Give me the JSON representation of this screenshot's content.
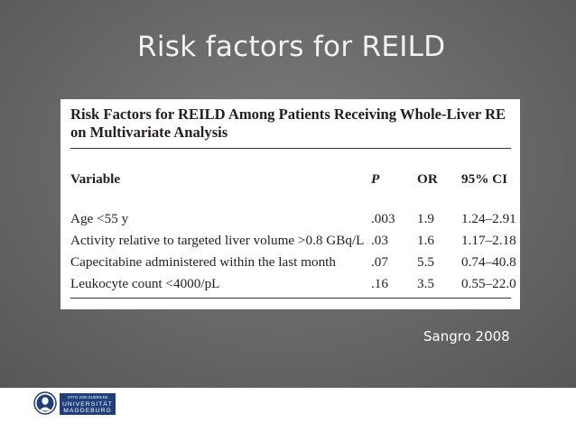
{
  "slide": {
    "title": "Risk factors for REILD",
    "source": "Sangro 2008"
  },
  "table": {
    "title": "Risk Factors for REILD Among Patients Receiving Whole-Liver RE on Multivariate Analysis",
    "headers": [
      "Variable",
      "P",
      "OR",
      "95% CI"
    ],
    "rows": [
      [
        "Age <55 y",
        ".003",
        "1.9",
        "1.24–2.91"
      ],
      [
        "Activity relative to targeted liver volume >0.8 GBq/L",
        ".03",
        "1.6",
        "1.17–2.18"
      ],
      [
        "Capecitabine administered within the last month",
        ".07",
        "5.5",
        "0.74–40.8"
      ],
      [
        "Leukocyte count <4000/pL",
        ".16",
        "3.5",
        "0.55–22.0"
      ]
    ]
  },
  "logo": {
    "line1": "OTTO VON GUERICKE",
    "line2": "UNIVERSITÄT",
    "line3": "MAGDEBURG",
    "color": "#1f3f7a"
  }
}
